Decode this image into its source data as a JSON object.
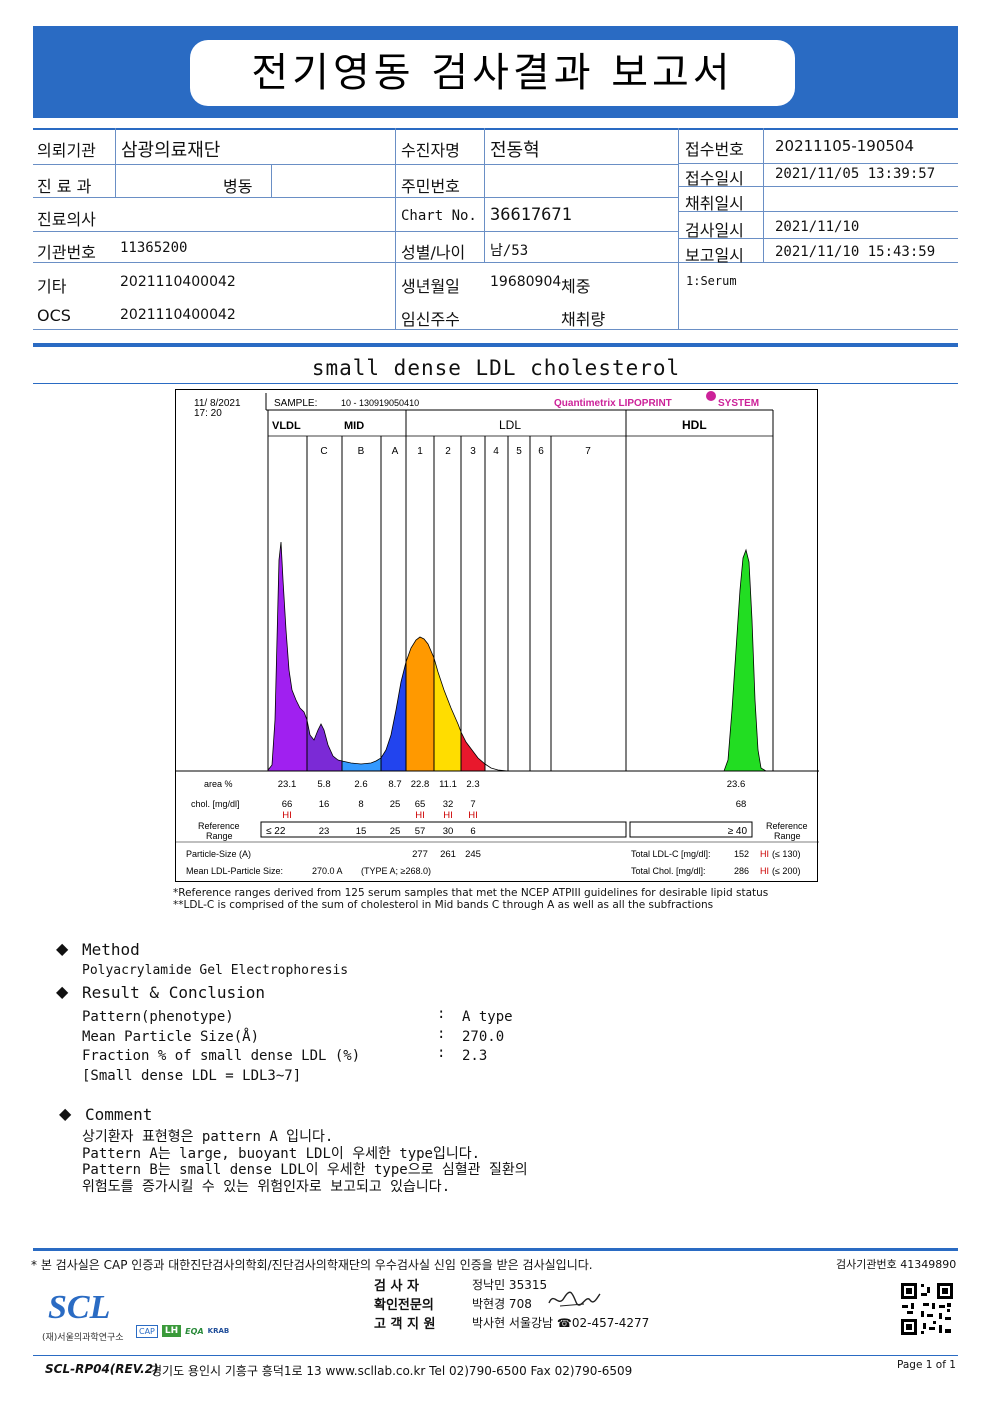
{
  "header": {
    "title": "전기영동 검사결과 보고서"
  },
  "info": {
    "institution_label": "의뢰기관",
    "institution": "삼광의료재단",
    "department_label": "진 료 과",
    "department": "병동",
    "doctor_label": "진료의사",
    "inst_no_label": "기관번호",
    "inst_no": "11365200",
    "other_label": "기타",
    "other": "2021110400042",
    "ocs_label": "OCS",
    "ocs": "2021110400042",
    "patient_label": "수진자명",
    "patient": "전동혁",
    "rrn_label": "주민번호",
    "chart_label": "Chart No.",
    "chart_no": "36617671",
    "sex_age_label": "성별/나이",
    "sex_age": "남/53",
    "dob_label": "생년월일",
    "dob": "19680904",
    "weight_label": "체중",
    "preg_label": "임신주수",
    "volume_label": "채취량",
    "receipt_no_label": "접수번호",
    "receipt_no": "20211105-190504",
    "receipt_dt_label": "접수일시",
    "receipt_dt": "2021/11/05 13:39:57",
    "collect_dt_label": "채취일시",
    "test_dt_label": "검사일시",
    "test_dt": "2021/11/10",
    "report_dt_label": "보고일시",
    "report_dt": "2021/11/10 15:43:59",
    "specimen": "1:Serum"
  },
  "subtitle": "small dense LDL cholesterol",
  "chart": {
    "date": "11/  8/2021",
    "time": "17: 20",
    "sample_label": "SAMPLE:",
    "sample": "10 - 130919050410",
    "brand": "Quantimetrix LIPOPRINT",
    "brand_suffix": "SYSTEM",
    "group_labels": {
      "vldl": "VLDL",
      "mid": "MID",
      "ldl": "LDL",
      "hdl": "HDL"
    },
    "bands": [
      "C",
      "B",
      "A",
      "1",
      "2",
      "3",
      "4",
      "5",
      "6",
      "7"
    ],
    "area_label": "area %",
    "chol_label": "chol. [mg/dl]",
    "ref_label_1": "Reference",
    "ref_label_2": "Range",
    "ref_label_r1": "Reference",
    "ref_label_r2": "Range",
    "area": [
      "23.1",
      "5.8",
      "2.6",
      "8.7",
      "22.8",
      "11.1",
      "2.3"
    ],
    "area_hdl": "23.6",
    "chol": [
      "66",
      "16",
      "8",
      "25",
      "65",
      "32",
      "7"
    ],
    "chol_hdl": "68",
    "flags": [
      "HI",
      "",
      "",
      "",
      "HI",
      "HI",
      "HI"
    ],
    "ref_first": "≤ 22",
    "ref": [
      "23",
      "15",
      "25",
      "57",
      "30",
      "6"
    ],
    "ref_hdl": "≥ 40",
    "particle_label": "Particle-Size (A)",
    "particle": [
      "277",
      "261",
      "245"
    ],
    "mean_label": "Mean LDL-Particle Size:",
    "mean_value": "270.0 A",
    "mean_type": "(TYPE A; ≥268.0)",
    "total_ldl_label": "Total LDL-C [mg/dl]:",
    "total_ldl": "152",
    "total_ldl_flag": "HI",
    "total_ldl_ref": "(≤ 130)",
    "total_chol_label": "Total Chol. [mg/dl]:",
    "total_chol": "286",
    "total_chol_flag": "HI",
    "total_chol_ref": "(≤ 200)",
    "colors": {
      "vldl": "#a020f0",
      "mid": "#7b2ad6",
      "band_b": "#3399ff",
      "band_a": "#2244ee",
      "band1": "#ff9900",
      "band2": "#ffdd00",
      "band3": "#e8182c",
      "hdl": "#22dd22"
    }
  },
  "notes": [
    "*Reference ranges derived from 125 serum samples that met the NCEP ATPIII guidelines for desirable lipid status",
    "**LDL-C is comprised of the sum of cholesterol in Mid bands C through A as well as all the subfractions"
  ],
  "method": {
    "title": "Method",
    "text": "Polyacrylamide Gel Electrophoresis"
  },
  "result": {
    "title": "Result & Conclusion",
    "rows": [
      {
        "label": "Pattern(phenotype)",
        "sep": ":",
        "value": "A type"
      },
      {
        "label": "Mean Particle Size(Å)",
        "sep": ":",
        "value": "270.0"
      },
      {
        "label": "Fraction % of small dense LDL (%)",
        "sep": ":",
        "value": "2.3"
      }
    ],
    "extra": "[Small dense LDL = LDL3~7]"
  },
  "comment": {
    "title": "Comment",
    "lines": [
      "상기환자 표현형은 pattern A 입니다.",
      "Pattern A는 large, buoyant LDL이 우세한 type입니다.",
      "Pattern B는 small dense LDL이 우세한 type으로 심혈관 질환의",
      "위험도를 증가시킬 수 있는 위험인자로 보고되고 있습니다."
    ]
  },
  "footer": {
    "cert": "* 본 검사실은 CAP 인증과 대한진단검사의학회/진단검사의학재단의 우수검사실 신임 인증을 받은 검사실입니다.",
    "reg": "검사기관번호 41349890",
    "examiner_label": "검 사 자",
    "examiner": "정낙민 35315",
    "confirm_label": "확인전문의",
    "confirm": "박현경 708",
    "support_label": "고 객 지 원",
    "support": "박사현 서울강남 ☎02-457-4277",
    "logo": "SCL",
    "logo_sub": "(재)서울의과학연구소",
    "cert_logos": [
      "CAP",
      "LH",
      "EQA",
      "KRAB"
    ],
    "form": "SCL-RP04(REV.2)",
    "address": "경기도 용인시 기흥구 흥덕1로 13  www.scllab.co.kr  Tel 02)790-6500  Fax 02)790-6509",
    "page": "Page 1 of 1"
  }
}
